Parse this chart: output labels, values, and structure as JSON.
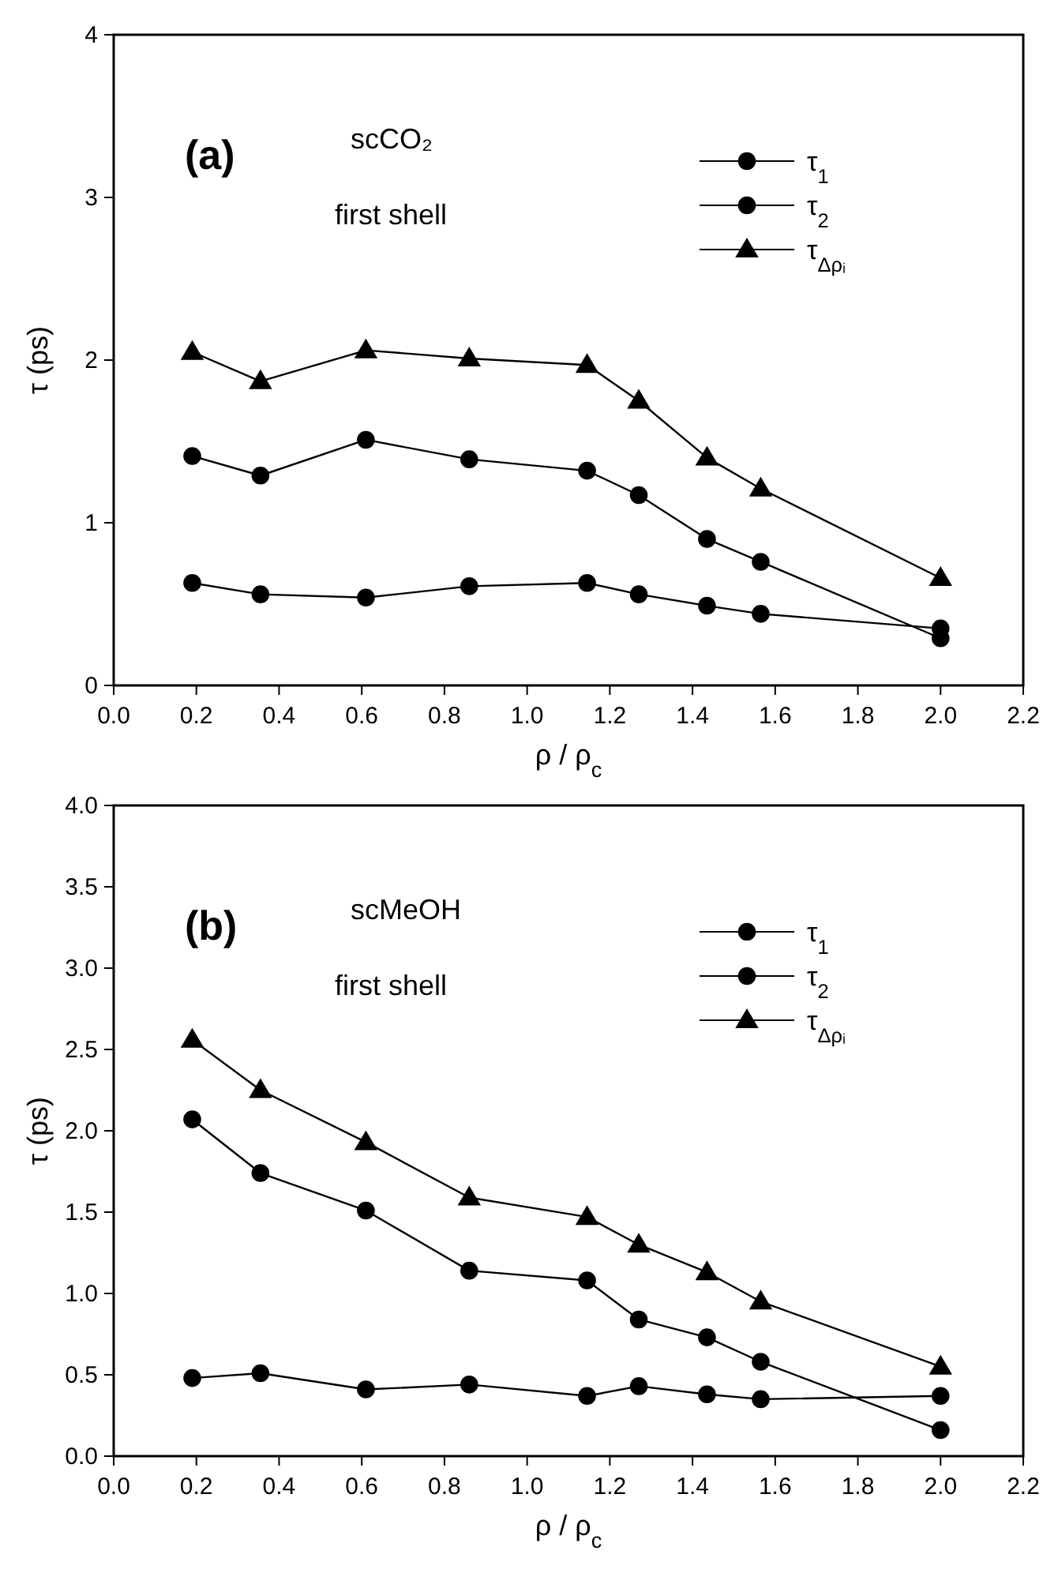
{
  "chart_data": [
    {
      "type": "line",
      "xlabel": "ρ / ρ$_{c}$",
      "ylabel": "τ (ps)",
      "annotations": [
        "(a)",
        "scCO₂",
        "first shell"
      ],
      "x": [
        0.19,
        0.355,
        0.61,
        0.86,
        1.145,
        1.27,
        1.435,
        1.565,
        2.0
      ],
      "xlim": [
        0,
        2.2
      ],
      "xticks": [
        {
          "value": 0,
          "label": "0.0"
        },
        {
          "value": 0.2,
          "label": "0.2"
        },
        {
          "value": 0.4,
          "label": "0.4"
        },
        {
          "value": 0.6,
          "label": "0.6"
        },
        {
          "value": 0.8,
          "label": "0.8"
        },
        {
          "value": 1,
          "label": "1.0"
        },
        {
          "value": 1.2,
          "label": "1.2"
        },
        {
          "value": 1.4,
          "label": "1.4"
        },
        {
          "value": 1.6,
          "label": "1.6"
        },
        {
          "value": 1.8,
          "label": "1.8"
        },
        {
          "value": 2,
          "label": "2.0"
        },
        {
          "value": 2.2,
          "label": "2.2"
        }
      ],
      "ylim": [
        0,
        4
      ],
      "yticks": [
        0,
        1,
        2,
        3,
        4
      ],
      "grid": false,
      "legend": "top right",
      "line_style": "solid",
      "series": [
        {
          "name": "τ$_{1}$",
          "color": "#000000",
          "marker": "circle",
          "values": [
            0.63,
            0.56,
            0.54,
            0.61,
            0.63,
            0.56,
            0.49,
            0.44,
            0.35
          ]
        },
        {
          "name": "τ$_{2}$",
          "color": "#000000",
          "marker": "circle",
          "values": [
            1.41,
            1.29,
            1.51,
            1.39,
            1.32,
            1.17,
            0.9,
            0.76,
            0.29
          ]
        },
        {
          "name": "τ$_{Δρᵢ}$",
          "color": "#000000",
          "marker": "triangle",
          "values": [
            2.05,
            1.87,
            2.06,
            2.01,
            1.97,
            1.75,
            1.4,
            1.21,
            0.66
          ]
        }
      ]
    },
    {
      "type": "line",
      "xlabel": "ρ / ρ$_{c}$",
      "ylabel": "τ (ps)",
      "annotations": [
        "(b)",
        "scMeOH",
        "first shell"
      ],
      "x": [
        0.19,
        0.355,
        0.61,
        0.86,
        1.145,
        1.27,
        1.435,
        1.565,
        2.0
      ],
      "xlim": [
        0,
        2.2
      ],
      "xticks": [
        {
          "value": 0,
          "label": "0.0"
        },
        {
          "value": 0.2,
          "label": "0.2"
        },
        {
          "value": 0.4,
          "label": "0.4"
        },
        {
          "value": 0.6,
          "label": "0.6"
        },
        {
          "value": 0.8,
          "label": "0.8"
        },
        {
          "value": 1,
          "label": "1.0"
        },
        {
          "value": 1.2,
          "label": "1.2"
        },
        {
          "value": 1.4,
          "label": "1.4"
        },
        {
          "value": 1.6,
          "label": "1.6"
        },
        {
          "value": 1.8,
          "label": "1.8"
        },
        {
          "value": 2,
          "label": "2.0"
        },
        {
          "value": 2.2,
          "label": "2.2"
        }
      ],
      "ylim": [
        0,
        4
      ],
      "yticks": [
        {
          "value": 0,
          "label": "0.0"
        },
        {
          "value": 0.5,
          "label": "0.5"
        },
        {
          "value": 1,
          "label": "1.0"
        },
        {
          "value": 1.5,
          "label": "1.5"
        },
        {
          "value": 2,
          "label": "2.0"
        },
        {
          "value": 2.5,
          "label": "2.5"
        },
        {
          "value": 3,
          "label": "3.0"
        },
        {
          "value": 3.5,
          "label": "3.5"
        },
        {
          "value": 4,
          "label": "4.0"
        }
      ],
      "grid": false,
      "legend": "top right",
      "line_style": "solid",
      "series": [
        {
          "name": "τ$_{1}$",
          "color": "#000000",
          "marker": "circle",
          "values": [
            0.48,
            0.51,
            0.41,
            0.44,
            0.37,
            0.43,
            0.38,
            0.35,
            0.37
          ]
        },
        {
          "name": "τ$_{2}$",
          "color": "#000000",
          "marker": "circle",
          "values": [
            2.07,
            1.74,
            1.51,
            1.14,
            1.08,
            0.84,
            0.73,
            0.58,
            0.16
          ]
        },
        {
          "name": "τ$_{Δρᵢ}$",
          "color": "#000000",
          "marker": "triangle",
          "values": [
            2.56,
            2.25,
            1.93,
            1.59,
            1.47,
            1.3,
            1.13,
            0.95,
            0.55
          ]
        }
      ]
    }
  ]
}
